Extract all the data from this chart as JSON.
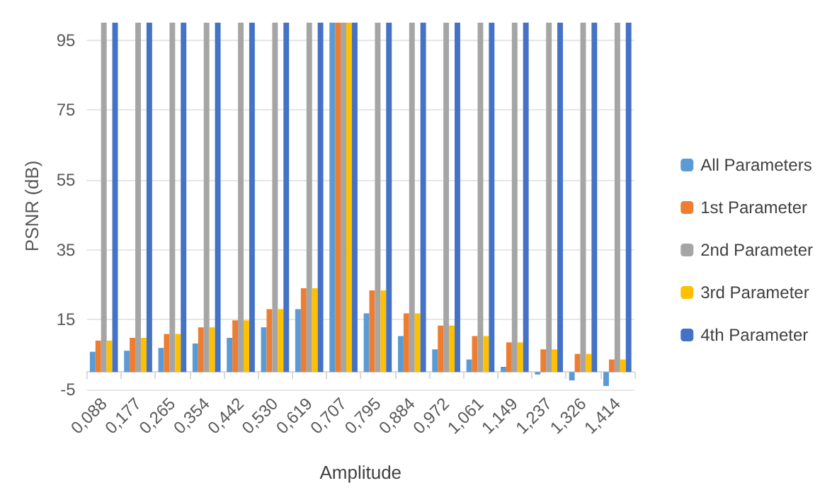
{
  "chart_data": {
    "type": "bar",
    "xlabel": "Amplitude",
    "ylabel": "PSNR (dB)",
    "categories": [
      "0,088",
      "0,177",
      "0,265",
      "0,354",
      "0,442",
      "0,530",
      "0,619",
      "0,707",
      "0,795",
      "0,884",
      "0,972",
      "1,061",
      "1,149",
      "1,237",
      "1,326",
      "1,414"
    ],
    "series": [
      {
        "name": "All Parameters",
        "color": "#5b9bd5",
        "values": [
          5.8,
          6.1,
          6.9,
          8.2,
          9.8,
          12.8,
          18,
          100,
          16.8,
          10.3,
          6.5,
          3.6,
          1.5,
          -0.7,
          -2.4,
          -4
        ]
      },
      {
        "name": "1st Parameter",
        "color": "#ed7d31",
        "values": [
          9,
          9.8,
          10.9,
          12.8,
          14.8,
          18,
          24,
          100,
          23.4,
          16.8,
          13.3,
          10.3,
          8.5,
          6.5,
          5.2,
          3.6
        ]
      },
      {
        "name": "2nd Parameter",
        "color": "#a5a5a5",
        "values": [
          100,
          100,
          100,
          100,
          100,
          100,
          100,
          100,
          100,
          100,
          100,
          100,
          100,
          100,
          100,
          100
        ]
      },
      {
        "name": "3rd Parameter",
        "color": "#ffc000",
        "values": [
          9,
          9.8,
          10.9,
          12.8,
          14.8,
          18,
          24,
          100,
          23.4,
          16.8,
          13.3,
          10.3,
          8.5,
          6.5,
          5.2,
          3.6
        ]
      },
      {
        "name": "4th Parameter",
        "color": "#4472c4",
        "values": [
          100,
          100,
          100,
          100,
          100,
          100,
          100,
          100,
          100,
          100,
          100,
          100,
          100,
          100,
          100,
          100
        ]
      }
    ],
    "ylim": [
      -5,
      100
    ],
    "yticks": [
      -5,
      15,
      35,
      55,
      75,
      95
    ],
    "grid": "y",
    "legend": "right"
  }
}
